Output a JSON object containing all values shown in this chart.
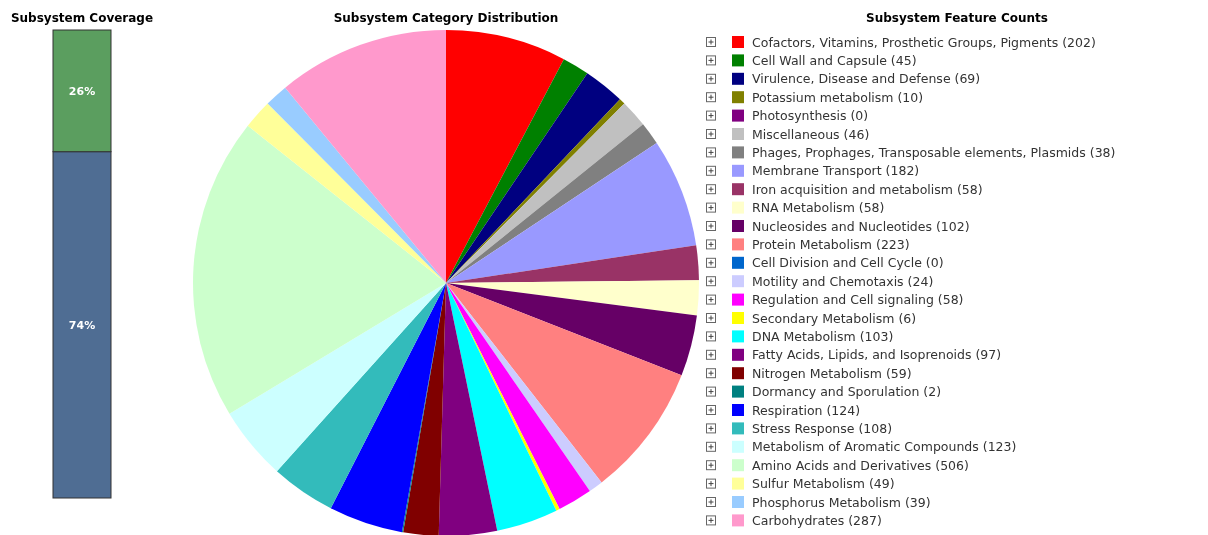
{
  "chart_data": [
    {
      "type": "bar",
      "title": "Subsystem Coverage",
      "stacked": true,
      "categories": [
        null
      ],
      "ylim": [
        0,
        100
      ],
      "tick_labels": false,
      "series": [
        {
          "color": "#4f6d93",
          "values": [
            74
          ],
          "value_labels": [
            "74%"
          ]
        },
        {
          "color": "#5b9e5f",
          "values": [
            26
          ],
          "value_labels": [
            "26%"
          ]
        }
      ]
    },
    {
      "type": "pie",
      "title": "Subsystem Category Distribution",
      "legend_title": "Subsystem Feature Counts",
      "legend": "right",
      "categories": [
        "Cofactors, Vitamins, Prosthetic Groups, Pigments (202)",
        "Cell Wall and Capsule (45)",
        "Virulence, Disease and Defense (69)",
        "Potassium metabolism (10)",
        "Photosynthesis (0)",
        "Miscellaneous (46)",
        "Phages, Prophages, Transposable elements, Plasmids (38)",
        "Membrane Transport (182)",
        "Iron acquisition and metabolism (58)",
        "RNA Metabolism (58)",
        "Nucleosides and Nucleotides (102)",
        "Protein Metabolism (223)",
        "Cell Division and Cell Cycle (0)",
        "Motility and Chemotaxis (24)",
        "Regulation and Cell signaling (58)",
        "Secondary Metabolism (6)",
        "DNA Metabolism (103)",
        "Fatty Acids, Lipids, and Isoprenoids (97)",
        "Nitrogen Metabolism (59)",
        "Dormancy and Sporulation (2)",
        "Respiration (124)",
        "Stress Response (108)",
        "Metabolism of Aromatic Compounds (123)",
        "Amino Acids and Derivatives (506)",
        "Sulfur Metabolism (49)",
        "Phosphorus Metabolism (39)",
        "Carbohydrates (287)"
      ],
      "values": [
        202,
        45,
        69,
        10,
        0,
        46,
        38,
        182,
        58,
        58,
        102,
        223,
        0,
        24,
        58,
        6,
        103,
        97,
        59,
        2,
        124,
        108,
        123,
        506,
        49,
        39,
        287
      ],
      "colors": [
        "#ff0000",
        "#008000",
        "#000080",
        "#808000",
        "#800080",
        "#c0c0c0",
        "#808080",
        "#9999ff",
        "#993366",
        "#ffffcc",
        "#660066",
        "#ff8080",
        "#0066cc",
        "#ccccff",
        "#ff00ff",
        "#ffff00",
        "#00ffff",
        "#800080",
        "#800000",
        "#008080",
        "#0000ff",
        "#33bbbb",
        "#ccffff",
        "#ccffcc",
        "#ffff99",
        "#99ccff",
        "#ff99cc"
      ]
    }
  ]
}
